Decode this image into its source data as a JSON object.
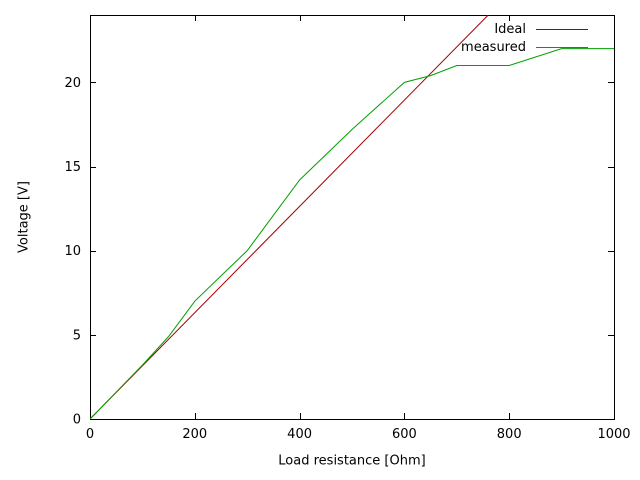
{
  "chart_data": {
    "type": "line",
    "title": "",
    "xlabel": "Load resistance [Ohm]",
    "ylabel": "Voltage [V]",
    "xlim": [
      0,
      1000
    ],
    "ylim": [
      0,
      24
    ],
    "xticks": [
      0,
      200,
      400,
      600,
      800,
      1000
    ],
    "yticks": [
      0,
      5,
      10,
      15,
      20
    ],
    "grid": false,
    "legend_position": "top-right-inside",
    "axis_color": "#000000",
    "series": [
      {
        "name": "Ideal",
        "color": "#a40000",
        "points": [
          [
            0,
            0
          ],
          [
            760,
            24
          ]
        ]
      },
      {
        "name": "measured",
        "color": "#00a000",
        "points": [
          [
            0,
            0
          ],
          [
            10,
            0.3
          ],
          [
            25,
            0.8
          ],
          [
            50,
            1.6
          ],
          [
            100,
            3.2
          ],
          [
            150,
            4.9
          ],
          [
            200,
            7
          ],
          [
            250,
            8.5
          ],
          [
            300,
            10
          ],
          [
            350,
            12.1
          ],
          [
            400,
            14.2
          ],
          [
            500,
            17.2
          ],
          [
            600,
            20
          ],
          [
            650,
            20.4
          ],
          [
            700,
            21
          ],
          [
            800,
            21
          ],
          [
            900,
            22
          ],
          [
            1000,
            22
          ]
        ]
      }
    ]
  }
}
